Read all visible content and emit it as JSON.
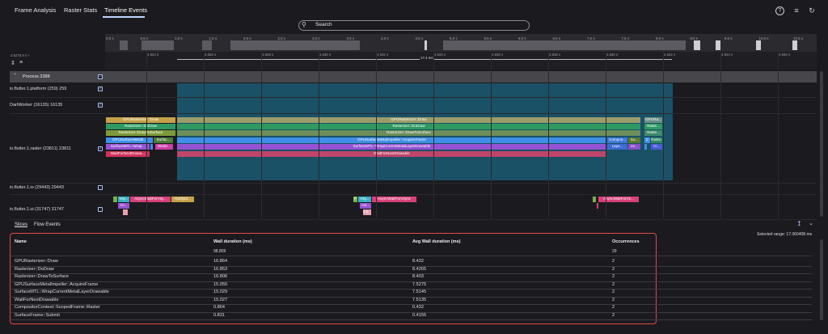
{
  "tabs": [
    {
      "label": "Frame Analysis"
    },
    {
      "label": "Raster Stats"
    },
    {
      "label": "Timeline Events"
    }
  ],
  "header_icons": [
    "help-icon",
    "filter-list-icon",
    "refresh-icon"
  ],
  "search": {
    "placeholder": "Search"
  },
  "overview_ticks": [
    "0.0 s",
    "0.5 s",
    "1.0 s",
    "1.5 s",
    "2.0 s",
    "2.5 s",
    "3.0 s",
    "3.5 s",
    "4.0 s",
    "4.5 s",
    "5.0 s",
    "5.5 s",
    "6.0 s",
    "6.5 s",
    "7.0 s",
    "7.5 s",
    "8.0 s",
    "8.5 s",
    "9.0 s",
    "10.0 s",
    "10.5 s"
  ],
  "timeline": {
    "start_time": "4.5275 8 s +",
    "ruler_ticks": [
      "4.824 s",
      "4.826 s",
      "4.828 s",
      "4.830 s",
      "4.832 s",
      "4.834 s",
      "4.836 s",
      "4.838 s",
      "4.840 s",
      "4.842 s",
      "4.844 s",
      "4.846 s",
      "4.848 s"
    ],
    "measure_label": "17.4 ms"
  },
  "process": {
    "label": "Process 3388"
  },
  "threads": [
    {
      "label": "io.flutter.1.platform (259) 259",
      "checked": true
    },
    {
      "label": "DartWorker (16135) 16135",
      "checked": true
    },
    {
      "label": "io.flutter.1.raster (23811) 23811",
      "checked": true
    },
    {
      "label": "io.flutter.1.io (29443) 29443",
      "checked": false
    },
    {
      "label": "io.flutter.1.ui (31747) 31747",
      "checked": false
    }
  ],
  "raster_slices": {
    "draw_left": "GPURasterizer::Draw",
    "draw_main": "GPURasterizer::Draw",
    "draw_right": "GPURa...",
    "dodraw_left": "Rasterizer::DoDraw",
    "dodraw_main": "Rasterizer::DoDraw",
    "dodraw_right": "Raste...",
    "dts_left": "Rasterizer::DrawToSurface",
    "dts_main": "Rasterizer::DrawToSurface",
    "dts_right": "Raste...",
    "gsm_left": "GPUSurfaceMetalI...",
    "gsm_left2": "Surfac...",
    "gsm_main": "GPUSurfaceMetalImpeller::AcquireFrame",
    "gsm_compo": "Compos...",
    "gsm_su": "Su...",
    "gsm_c": "C",
    "gsm_r": "Raste...",
    "smtl_left": "SurfaceMTL::Wrap...",
    "smtl_left2": "WaitU...",
    "smtl_main": "SurfaceMTL::WrapCurrentMetalLayerDrawable",
    "smtl_laye": "Laye...",
    "smtl_ex": "ex...",
    "smtl_h": "H...",
    "wait_left": "WaitForNextDrawa...",
    "wait_main": "WaitForNextDrawable"
  },
  "ui_slices": {
    "vsy1": "Vsy...",
    "async1": "AsyncWaitForVsy...",
    "notify1": "NotifyId...",
    "an1": "An...",
    "p1": "P",
    "vsy2": "Vsy...",
    "async2": "AsyncWaitForVsync",
    "ani2": "Ani...",
    "ca": "Ca...",
    "async3": "AsyncWaitForVs..."
  },
  "section_tabs": [
    {
      "label": "Slices"
    },
    {
      "label": "Flow Events"
    }
  ],
  "selected_range": "Selected range: 17.360408 ms",
  "table": {
    "headers": {
      "name": "Name",
      "wall": "Wall duration (ms)",
      "avg": "Avg Wall duration (ms)",
      "occ": "Occurrences"
    },
    "totals": {
      "wall": "98.809",
      "occ": "29"
    },
    "rows": [
      {
        "name": "GPURasterizer::Draw",
        "wall": "16.864",
        "avg": "8.432",
        "occ": "2"
      },
      {
        "name": "Rasterizer::DoDraw",
        "wall": "16.853",
        "avg": "8.4265",
        "occ": "2"
      },
      {
        "name": "Rasterizer::DrawToSurface",
        "wall": "16.806",
        "avg": "8.403",
        "occ": "2"
      },
      {
        "name": "GPUSurfaceMetalImpeller::AcquireFrame",
        "wall": "15.055",
        "avg": "7.5275",
        "occ": "2"
      },
      {
        "name": "SurfaceMTL::WrapCurrentMetalLayerDrawable",
        "wall": "15.029",
        "avg": "7.5145",
        "occ": "2"
      },
      {
        "name": "WaitForNextDrawable",
        "wall": "15.027",
        "avg": "7.5135",
        "occ": "2"
      },
      {
        "name": "CompositorContext::ScopedFrame::Raster",
        "wall": "0.864",
        "avg": "0.432",
        "occ": "2"
      },
      {
        "name": "SurfaceFrame::Submit",
        "wall": "0.831",
        "avg": "0.4155",
        "occ": "2"
      }
    ]
  },
  "colors": {
    "draw": "#c6a14a",
    "dodraw": "#2e9a62",
    "dts": "#7c9a3a",
    "gsm": "#3f8fe6",
    "smtl": "#9552d3",
    "wait": "#d1325c",
    "highlight": "#1a5166",
    "async": "#d8407a"
  }
}
